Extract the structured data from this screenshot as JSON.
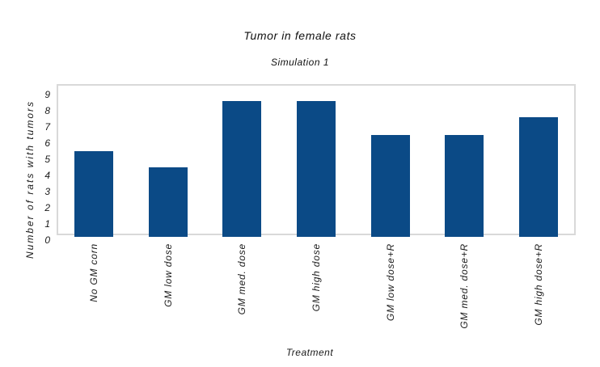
{
  "chart_data": {
    "type": "bar",
    "title": "Tumor in female rats",
    "subtitle": "Simulation 1",
    "xlabel": "Treatment",
    "ylabel": "Number of rats with tumors",
    "categories": [
      "No GM corn",
      "GM low dose",
      "GM med. dose",
      "GM high dose",
      "GM low dose+R",
      "GM med. dose+R",
      "GM high dose+R"
    ],
    "values": [
      5.5,
      4.5,
      8.6,
      8.6,
      6.5,
      6.5,
      7.6
    ],
    "yticks": [
      0,
      1,
      2,
      3,
      4,
      5,
      6,
      7,
      8,
      9
    ],
    "ylim": [
      0,
      9.6
    ],
    "grid": false,
    "legend_position": "none",
    "colors": {
      "bar": "#0b4a86",
      "text": "#1a1a1a",
      "plot_border": "#d9d9d9",
      "background": "#ffffff"
    }
  }
}
